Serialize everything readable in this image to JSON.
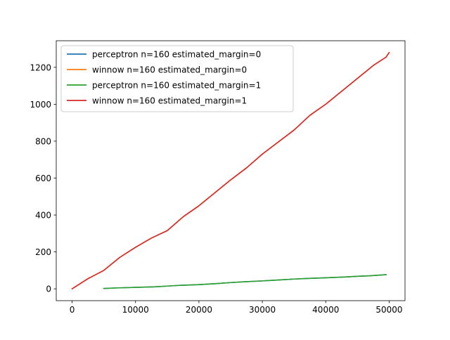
{
  "chart_data": {
    "type": "line",
    "title": "",
    "xlabel": "",
    "ylabel": "",
    "xlim": [
      -2500,
      52500
    ],
    "ylim": [
      -64,
      1344
    ],
    "xticks": [
      0,
      10000,
      20000,
      30000,
      40000,
      50000
    ],
    "xtick_labels": [
      "0",
      "10000",
      "20000",
      "30000",
      "40000",
      "50000"
    ],
    "yticks": [
      0,
      200,
      400,
      600,
      800,
      1000,
      1200
    ],
    "ytick_labels": [
      "0",
      "200",
      "400",
      "600",
      "800",
      "1000",
      "1200"
    ],
    "grid": false,
    "legend_position": "upper left",
    "series": [
      {
        "name": "perceptron n=160 estimated_margin=0",
        "color": "#1f77b4",
        "x": [
          5000,
          7000,
          10000,
          13000,
          15000,
          17000,
          20000,
          23000,
          25000,
          27000,
          30000,
          33000,
          35000,
          37000,
          40000,
          43000,
          45000,
          47000,
          49500
        ],
        "y": [
          2,
          5,
          8,
          11,
          15,
          19,
          23,
          29,
          34,
          38,
          43,
          49,
          53,
          56,
          60,
          64,
          68,
          71,
          77
        ]
      },
      {
        "name": "winnow n=160 estimated_margin=0",
        "color": "#ff7f0e",
        "x": [
          0,
          2500,
          5000,
          7500,
          10000,
          12500,
          15000,
          17500,
          20000,
          22500,
          25000,
          27500,
          30000,
          32500,
          35000,
          37500,
          40000,
          42500,
          45000,
          47500,
          49500,
          50000
        ],
        "y": [
          0,
          55,
          100,
          170,
          225,
          275,
          315,
          390,
          450,
          520,
          590,
          655,
          730,
          795,
          860,
          940,
          1000,
          1070,
          1140,
          1210,
          1255,
          1280
        ]
      },
      {
        "name": "perceptron n=160 estimated_margin=1",
        "color": "#2ca02c",
        "x": [
          5000,
          7000,
          10000,
          13000,
          15000,
          17000,
          20000,
          23000,
          25000,
          27000,
          30000,
          33000,
          35000,
          37000,
          40000,
          43000,
          45000,
          47000,
          49500
        ],
        "y": [
          2,
          5,
          8,
          11,
          15,
          19,
          23,
          29,
          34,
          38,
          43,
          49,
          53,
          56,
          60,
          64,
          68,
          71,
          77
        ]
      },
      {
        "name": "winnow n=160 estimated_margin=1",
        "color": "#d62728",
        "x": [
          0,
          2500,
          5000,
          7500,
          10000,
          12500,
          15000,
          17500,
          20000,
          22500,
          25000,
          27500,
          30000,
          32500,
          35000,
          37500,
          40000,
          42500,
          45000,
          47500,
          49500,
          50000
        ],
        "y": [
          0,
          55,
          100,
          170,
          225,
          275,
          315,
          390,
          450,
          520,
          590,
          655,
          730,
          795,
          860,
          940,
          1000,
          1070,
          1140,
          1210,
          1255,
          1280
        ]
      }
    ]
  }
}
